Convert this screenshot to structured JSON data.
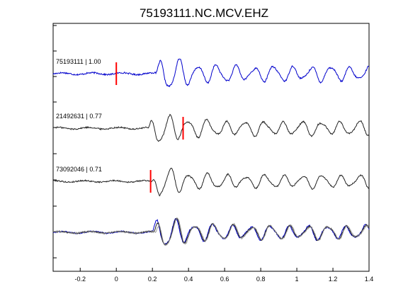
{
  "chart_data": {
    "type": "line",
    "title": "75193111.NC.MCV.EHZ",
    "xlabel": "",
    "ylabel": "",
    "xlim": [
      -0.35,
      1.4
    ],
    "x_ticks": [
      -0.2,
      0,
      0.2,
      0.4,
      0.6,
      0.8,
      1,
      1.2,
      1.4
    ],
    "x_tick_labels": [
      "-0.2",
      "0",
      "0.2",
      "0.4",
      "0.6",
      "0.8",
      "1",
      "1.2",
      "1.4"
    ],
    "grid": false,
    "traces": [
      {
        "label": "75193111 | 1.00",
        "event_id": "75193111",
        "correlation": 1.0,
        "color": "#0000cc",
        "pick_time": 0.0,
        "onset_time": 0.22
      },
      {
        "label": "21492631 | 0.77",
        "event_id": "21492631",
        "correlation": 0.77,
        "color": "#222222",
        "pick_time": 0.37,
        "onset_time": 0.18
      },
      {
        "label": "73092046 | 0.71",
        "event_id": "73092046",
        "correlation": 0.71,
        "color": "#222222",
        "pick_time": 0.19,
        "onset_time": 0.2
      }
    ],
    "overlay": {
      "series": [
        {
          "color": "#0000cc"
        },
        {
          "color": "#222222"
        },
        {
          "color": "#888888"
        }
      ]
    },
    "pick_color": "#ff0000"
  }
}
